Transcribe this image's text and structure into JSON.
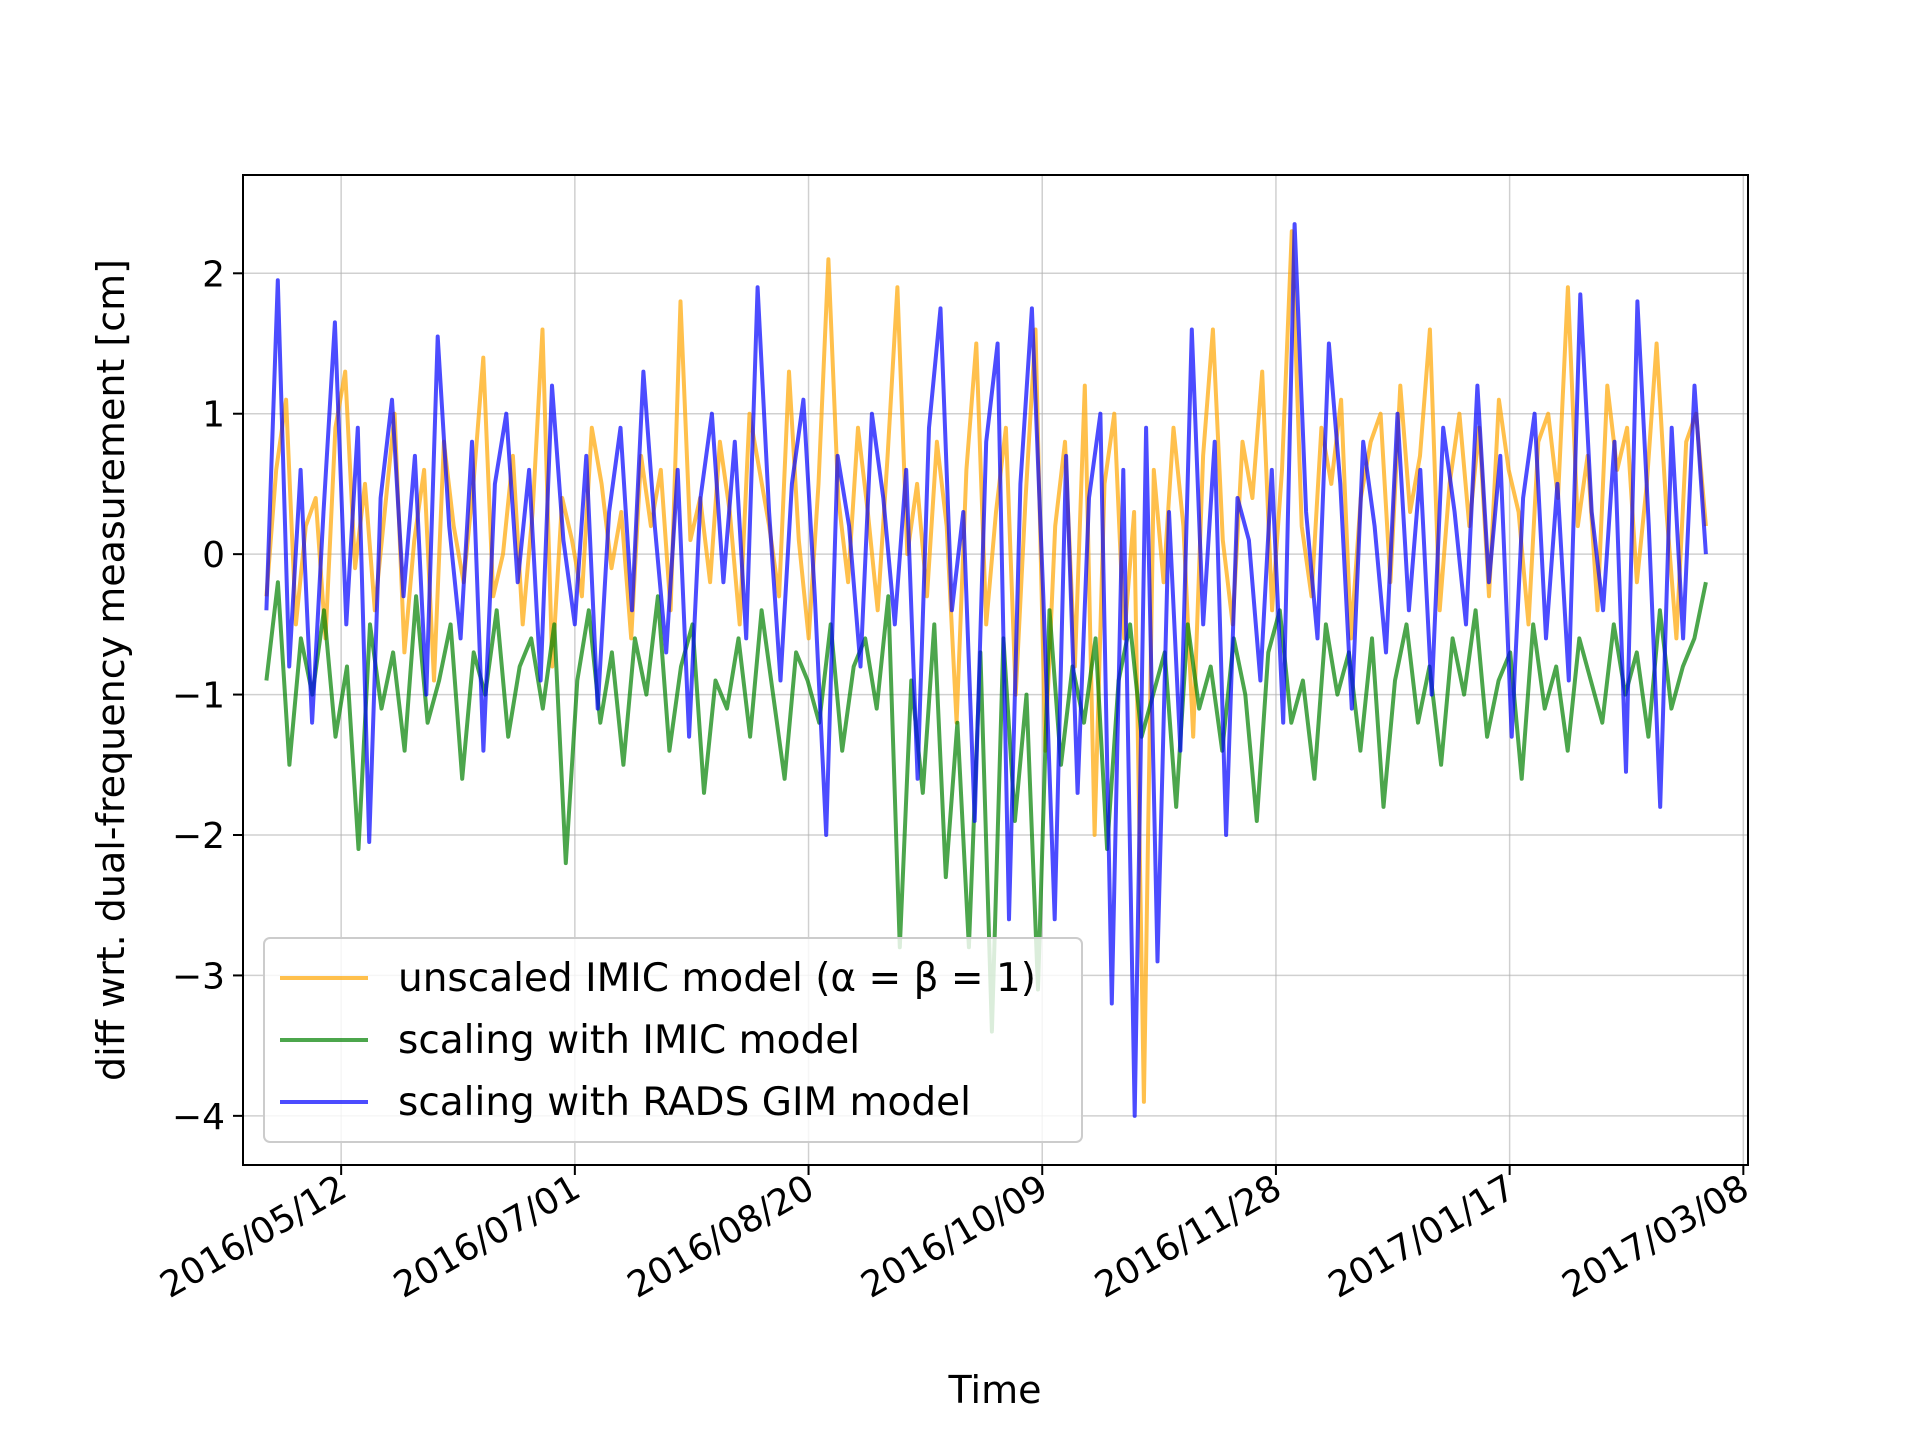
{
  "chart_data": {
    "type": "line",
    "title": "",
    "xlabel": "Time",
    "ylabel": "diff wrt. dual-frequency measurement [cm]",
    "x_start": "2016/04/26",
    "x_end": "2017/02/28",
    "xlim": [
      "2016/04/21",
      "2017/03/09"
    ],
    "ylim": [
      -4.35,
      2.7
    ],
    "xticks": [
      "2016/05/12",
      "2016/07/01",
      "2016/08/20",
      "2016/10/09",
      "2016/11/28",
      "2017/01/17",
      "2017/03/08"
    ],
    "yticks": [
      2,
      1,
      0,
      -1,
      -2,
      -3,
      -4
    ],
    "ytick_labels": [
      "2",
      "1",
      "0",
      "−1",
      "−2",
      "−3",
      "−4"
    ],
    "grid": true,
    "legend_position": "lower-left",
    "series": [
      {
        "name": "unscaled IMIC model (α = β = 1)",
        "color": "#FFA500",
        "values": [
          -0.3,
          0.6,
          1.1,
          -0.5,
          0.2,
          0.4,
          -0.6,
          0.9,
          1.3,
          -0.1,
          0.5,
          -0.4,
          0.3,
          1.0,
          -0.7,
          0.1,
          0.6,
          -0.9,
          0.8,
          0.2,
          -0.2,
          0.5,
          1.4,
          -0.3,
          0.0,
          0.7,
          -0.5,
          0.3,
          1.6,
          -0.8,
          0.4,
          0.1,
          -0.3,
          0.9,
          0.5,
          -0.1,
          0.3,
          -0.6,
          0.7,
          0.2,
          0.6,
          -0.4,
          1.8,
          0.1,
          0.4,
          -0.2,
          0.8,
          0.3,
          -0.5,
          1.0,
          0.6,
          0.2,
          -0.3,
          1.3,
          0.1,
          -0.6,
          0.5,
          2.1,
          0.4,
          -0.2,
          0.9,
          0.3,
          -0.4,
          0.7,
          1.9,
          0.0,
          0.5,
          -0.3,
          0.8,
          0.2,
          -1.2,
          0.6,
          1.5,
          -0.5,
          0.3,
          0.9,
          -1.0,
          0.4,
          1.6,
          -1.4,
          0.2,
          0.8,
          -0.8,
          1.2,
          -2.0,
          0.5,
          1.0,
          -0.6,
          0.3,
          -3.9,
          0.6,
          -0.2,
          0.9,
          0.2,
          -1.3,
          0.7,
          1.6,
          0.1,
          -0.5,
          0.8,
          0.4,
          1.3,
          -0.4,
          0.6,
          2.3,
          0.2,
          -0.3,
          0.9,
          0.5,
          1.1,
          -0.6,
          0.4,
          0.8,
          1.0,
          -0.2,
          1.2,
          0.3,
          0.7,
          1.6,
          -0.4,
          0.5,
          1.0,
          0.2,
          0.9,
          -0.3,
          1.1,
          0.6,
          0.3,
          -0.5,
          0.8,
          1.0,
          0.4,
          1.9,
          0.2,
          0.7,
          -0.4,
          1.2,
          0.6,
          0.9,
          -0.2,
          0.5,
          1.5,
          0.3,
          -0.6,
          0.8,
          1.0,
          0.2
        ]
      },
      {
        "name": "scaling with IMIC model",
        "color": "#008000",
        "values": [
          -0.9,
          -0.2,
          -1.5,
          -0.6,
          -1.0,
          -0.4,
          -1.3,
          -0.8,
          -2.1,
          -0.5,
          -1.1,
          -0.7,
          -1.4,
          -0.3,
          -1.2,
          -0.9,
          -0.5,
          -1.6,
          -0.7,
          -1.0,
          -0.4,
          -1.3,
          -0.8,
          -0.6,
          -1.1,
          -0.5,
          -2.2,
          -0.9,
          -0.4,
          -1.2,
          -0.7,
          -1.5,
          -0.6,
          -1.0,
          -0.3,
          -1.4,
          -0.8,
          -0.5,
          -1.7,
          -0.9,
          -1.1,
          -0.6,
          -1.3,
          -0.4,
          -1.0,
          -1.6,
          -0.7,
          -0.9,
          -1.2,
          -0.5,
          -1.4,
          -0.8,
          -0.6,
          -1.1,
          -0.3,
          -2.8,
          -0.9,
          -1.7,
          -0.5,
          -2.3,
          -1.2,
          -2.8,
          -0.7,
          -3.4,
          -0.6,
          -1.9,
          -1.0,
          -3.1,
          -0.4,
          -1.5,
          -0.8,
          -1.2,
          -0.6,
          -2.1,
          -0.9,
          -0.5,
          -1.3,
          -1.0,
          -0.7,
          -1.8,
          -0.5,
          -1.1,
          -0.8,
          -1.4,
          -0.6,
          -1.0,
          -1.9,
          -0.7,
          -0.4,
          -1.2,
          -0.9,
          -1.6,
          -0.5,
          -1.0,
          -0.7,
          -1.4,
          -0.6,
          -1.8,
          -0.9,
          -0.5,
          -1.2,
          -0.8,
          -1.5,
          -0.6,
          -1.0,
          -0.4,
          -1.3,
          -0.9,
          -0.7,
          -1.6,
          -0.5,
          -1.1,
          -0.8,
          -1.4,
          -0.6,
          -0.9,
          -1.2,
          -0.5,
          -1.0,
          -0.7,
          -1.3,
          -0.4,
          -1.1,
          -0.8,
          -0.6,
          -0.2
        ]
      },
      {
        "name": "scaling with RADS GIM model",
        "color": "#0000FF",
        "values": [
          -0.4,
          1.95,
          -0.8,
          0.6,
          -1.2,
          0.3,
          1.65,
          -0.5,
          0.9,
          -2.05,
          0.4,
          1.1,
          -0.3,
          0.7,
          -1.0,
          1.55,
          0.2,
          -0.6,
          0.8,
          -1.4,
          0.5,
          1.0,
          -0.2,
          0.6,
          -0.9,
          1.2,
          0.1,
          -0.5,
          0.7,
          -1.1,
          0.3,
          0.9,
          -0.4,
          1.3,
          0.2,
          -0.7,
          0.6,
          -1.3,
          0.4,
          1.0,
          -0.2,
          0.8,
          -0.6,
          1.9,
          0.3,
          -0.9,
          0.5,
          1.1,
          -0.3,
          -2.0,
          0.7,
          0.2,
          -0.8,
          1.0,
          0.4,
          -0.5,
          0.6,
          -1.6,
          0.9,
          1.75,
          -0.4,
          0.3,
          -1.9,
          0.8,
          1.5,
          -2.6,
          0.5,
          1.75,
          -0.3,
          -2.6,
          0.7,
          -1.7,
          0.4,
          1.0,
          -3.2,
          0.6,
          -4.0,
          0.9,
          -2.9,
          0.3,
          -1.4,
          1.6,
          -0.5,
          0.8,
          -2.0,
          0.4,
          0.1,
          -0.9,
          0.6,
          -1.2,
          2.35,
          0.3,
          -0.6,
          1.5,
          0.5,
          -1.1,
          0.8,
          0.2,
          -0.7,
          1.0,
          -0.4,
          0.6,
          -1.0,
          0.9,
          0.3,
          -0.5,
          1.2,
          -0.2,
          0.7,
          -1.3,
          0.4,
          1.0,
          -0.6,
          0.5,
          -0.9,
          1.85,
          0.3,
          -0.4,
          0.8,
          -1.55,
          1.8,
          0.2,
          -1.8,
          0.9,
          -0.6,
          1.2,
          0.0
        ]
      }
    ]
  }
}
